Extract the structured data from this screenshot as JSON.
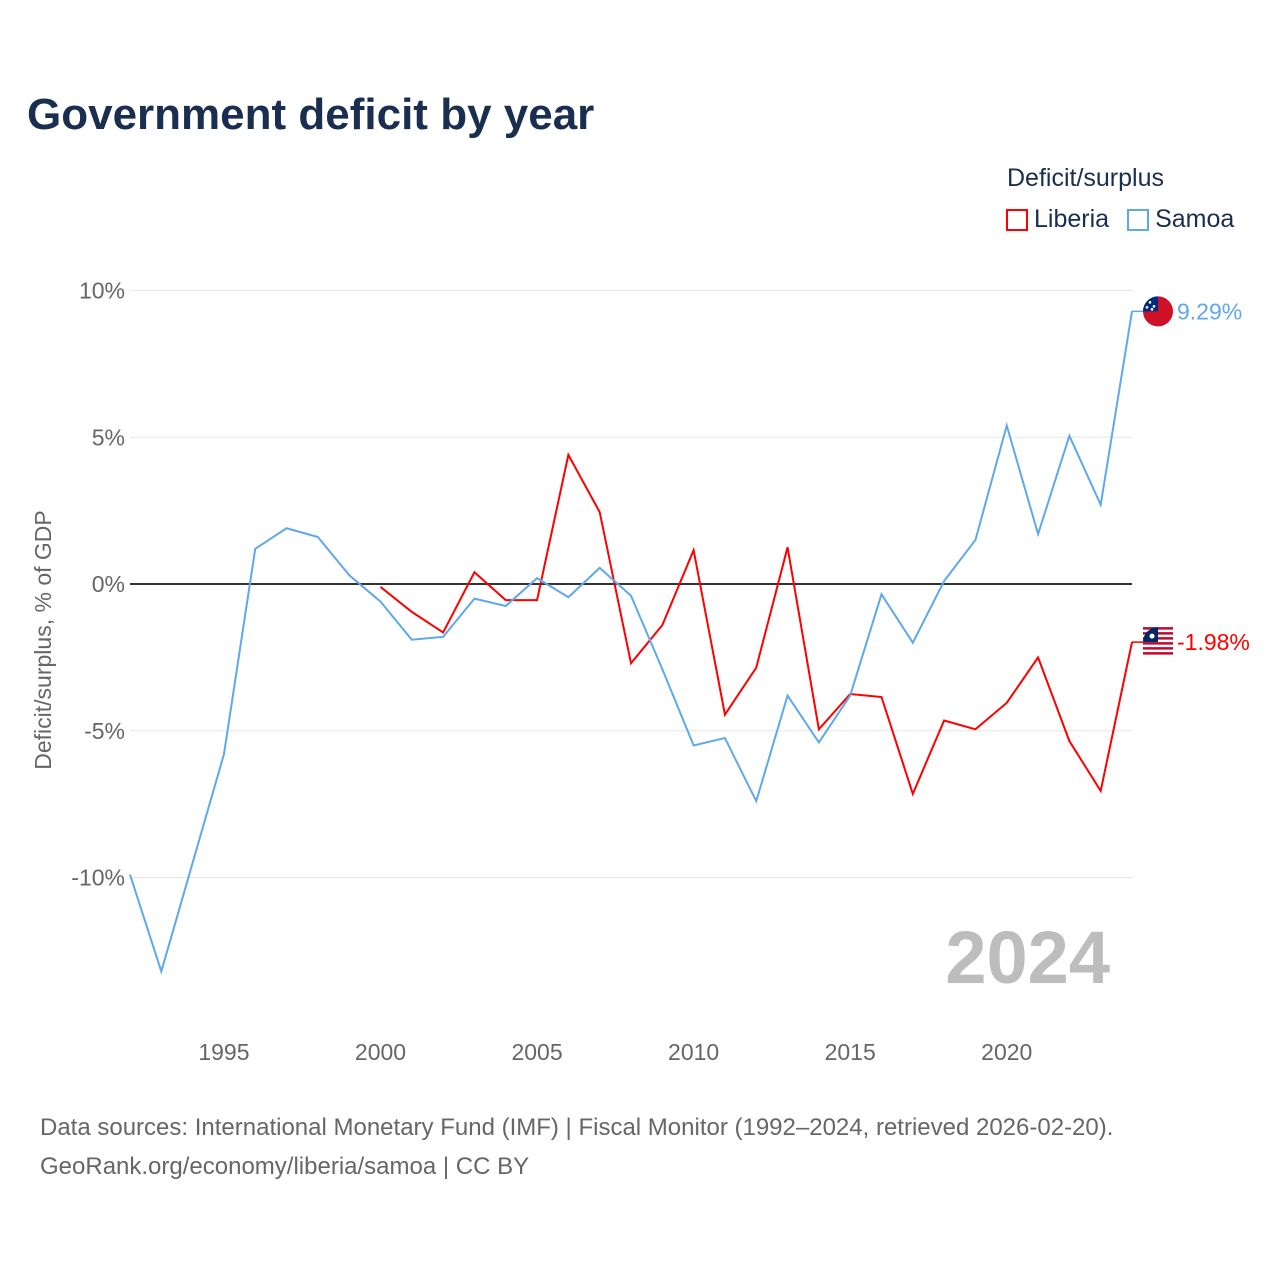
{
  "title": "Government deficit by year",
  "legend": {
    "title": "Deficit/surplus",
    "items": [
      {
        "name": "Liberia",
        "color": "#ff0000"
      },
      {
        "name": "Samoa",
        "color": "#5fa8ea"
      }
    ]
  },
  "year_label": "2024",
  "source_line1": "Data sources: International Monetary Fund (IMF) | Fiscal Monitor (1992–2024, retrieved 2026-02-20).",
  "source_line2": "GeoRank.org/economy/liberia/samoa | CC BY",
  "chart_data": {
    "type": "line",
    "title": "Government deficit by year",
    "ylabel": "Deficit/surplus, % of GDP",
    "xlabel": "",
    "ylim": [
      -14,
      11
    ],
    "xlim": [
      1992,
      2024
    ],
    "yticks": [
      {
        "v": 10,
        "label": "10%"
      },
      {
        "v": 5,
        "label": "5%"
      },
      {
        "v": 0,
        "label": "0%"
      },
      {
        "v": -5,
        "label": "-5%"
      },
      {
        "v": -10,
        "label": "-10%"
      }
    ],
    "xticks": [
      1995,
      2000,
      2005,
      2010,
      2015,
      2020
    ],
    "series": [
      {
        "name": "Liberia",
        "color": "#ff0000",
        "end_label": "-1.98%",
        "x": [
          2000,
          2001,
          2002,
          2003,
          2004,
          2005,
          2006,
          2007,
          2008,
          2009,
          2010,
          2011,
          2012,
          2013,
          2014,
          2015,
          2016,
          2017,
          2018,
          2019,
          2020,
          2021,
          2022,
          2023,
          2024
        ],
        "values": [
          -0.1,
          -0.95,
          -1.65,
          0.4,
          -0.55,
          -0.55,
          4.4,
          2.45,
          -2.7,
          -1.4,
          1.15,
          -4.45,
          -2.85,
          1.25,
          -4.95,
          -3.75,
          -3.85,
          -7.15,
          -4.65,
          -4.95,
          -4.05,
          -2.5,
          -5.35,
          -7.05,
          -1.98
        ]
      },
      {
        "name": "Samoa",
        "color": "#5fa8ea",
        "end_label": "9.29%",
        "x": [
          1992,
          1993,
          1994,
          1995,
          1996,
          1997,
          1998,
          1999,
          2000,
          2001,
          2002,
          2003,
          2004,
          2005,
          2006,
          2007,
          2008,
          2009,
          2010,
          2011,
          2012,
          2013,
          2014,
          2015,
          2016,
          2017,
          2018,
          2019,
          2020,
          2021,
          2022,
          2023,
          2024
        ],
        "values": [
          -9.9,
          -13.2,
          -9.5,
          -5.8,
          1.2,
          1.9,
          1.6,
          0.3,
          -0.6,
          -1.9,
          -1.8,
          -0.5,
          -0.75,
          0.2,
          -0.45,
          0.55,
          -0.4,
          -2.9,
          -5.5,
          -5.25,
          -7.4,
          -3.8,
          -5.4,
          -3.8,
          -0.35,
          -2.0,
          0.1,
          1.5,
          5.4,
          1.7,
          5.05,
          2.7,
          9.29
        ]
      }
    ]
  }
}
